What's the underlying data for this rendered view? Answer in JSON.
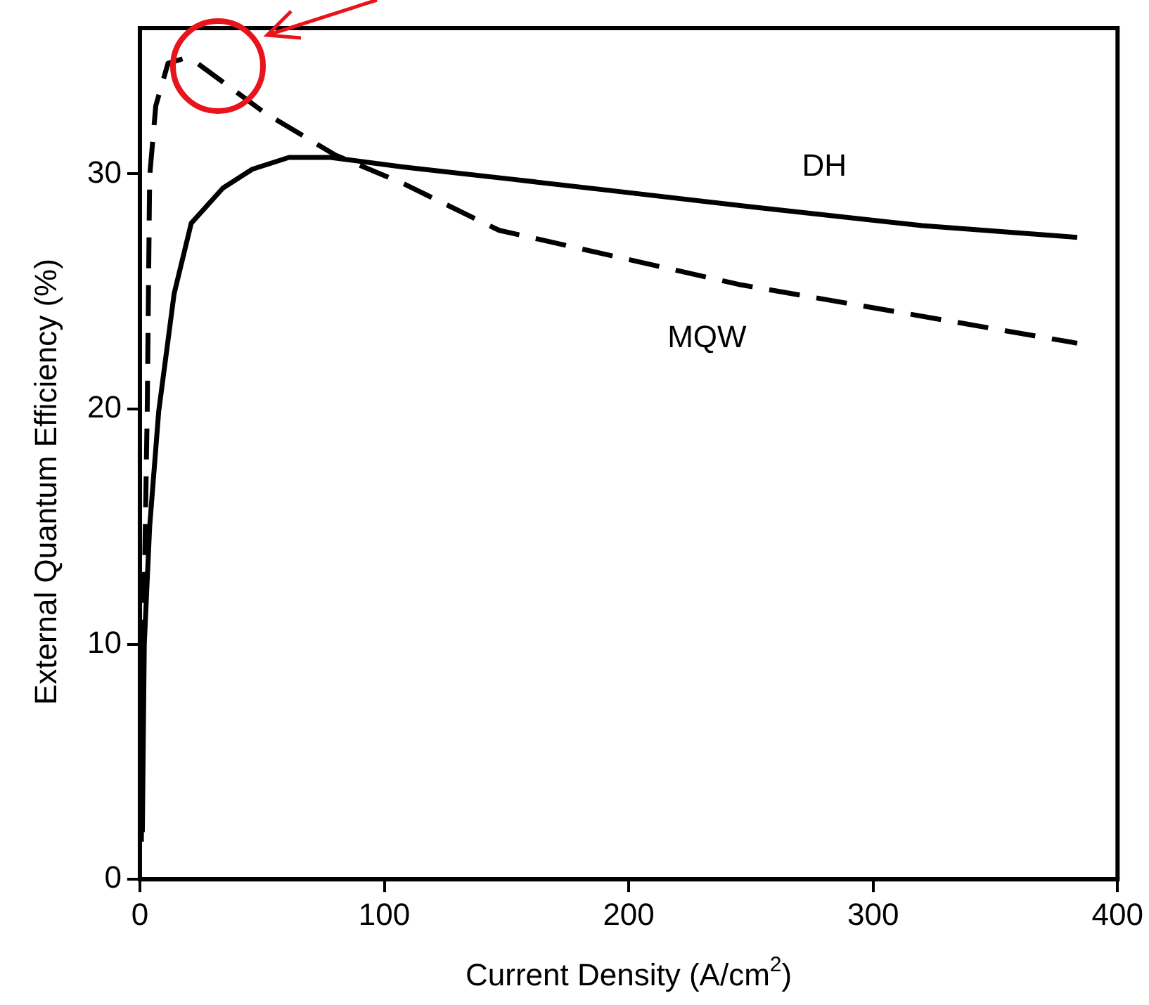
{
  "chart_data": {
    "type": "line",
    "xlabel": "Current Density (A/cm$^{2}$)",
    "ylabel": "External Quantum Efficiency (%)",
    "xlim": [
      0,
      400
    ],
    "xticks": [
      0,
      100,
      200,
      300,
      400
    ],
    "ylim": [
      0,
      36.2
    ],
    "yticks": [
      0,
      10,
      20,
      30
    ],
    "grid": false,
    "legend": false,
    "marker": "none",
    "series": [
      {
        "name": "DH",
        "color": "#000000",
        "line_style": "solid",
        "x": [
          1,
          1.8,
          4,
          7.7,
          14,
          21,
          34,
          46,
          61,
          78,
          107.5,
          150,
          192,
          250,
          320,
          383.5
        ],
        "values": [
          2,
          10,
          15,
          19.9,
          24.9,
          27.9,
          29.4,
          30.2,
          30.7,
          30.7,
          30.3,
          29.8,
          29.3,
          28.6,
          27.8,
          27.3
        ]
      },
      {
        "name": "MQW",
        "color": "#000000",
        "line_style": "dashed",
        "x": [
          0.6,
          1.8,
          3,
          4,
          6.5,
          11.5,
          17.7,
          23.6,
          51,
          80,
          107.5,
          147,
          245,
          383.5
        ],
        "values": [
          1.6,
          12.4,
          19.9,
          29.9,
          32.9,
          34.7,
          34.9,
          34.7,
          32.6,
          30.8,
          29.6,
          27.6,
          25.3,
          22.8
        ]
      }
    ]
  }
}
